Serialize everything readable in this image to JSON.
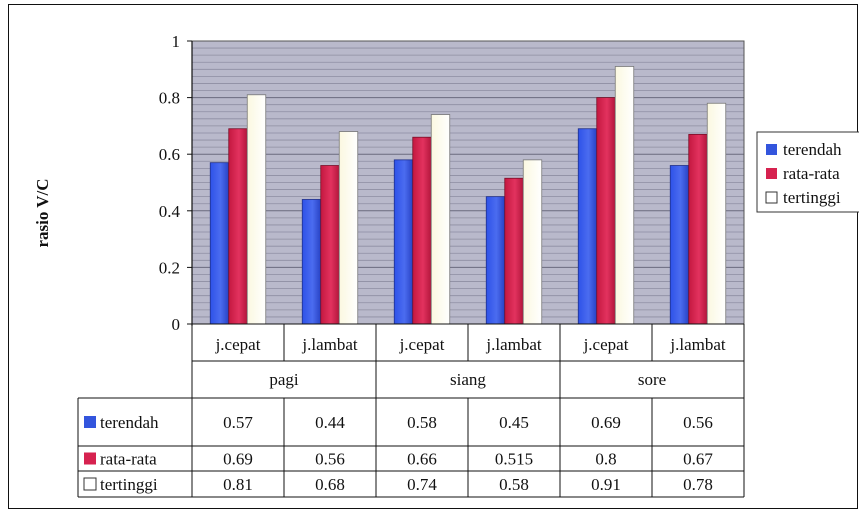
{
  "chart_data": {
    "type": "bar",
    "ylabel": "rasio V/C",
    "ylim": [
      0,
      1
    ],
    "y_ticks": [
      "0",
      "0.2",
      "0.4",
      "0.6",
      "0.8",
      "1"
    ],
    "categories": [
      "j.cepat",
      "j.lambat",
      "j.cepat",
      "j.lambat",
      "j.cepat",
      "j.lambat"
    ],
    "groups": [
      "pagi",
      "siang",
      "sore"
    ],
    "grid": true,
    "legend_position": "right",
    "series": [
      {
        "name": "terendah",
        "color": "#3355dd",
        "values": [
          0.57,
          0.44,
          0.58,
          0.45,
          0.69,
          0.56
        ],
        "labels": [
          "0.57",
          "0.44",
          "0.58",
          "0.45",
          "0.69",
          "0.56"
        ]
      },
      {
        "name": "rata-rata",
        "color": "#d6224f",
        "values": [
          0.69,
          0.56,
          0.66,
          0.515,
          0.8,
          0.67
        ],
        "labels": [
          "0.69",
          "0.56",
          "0.66",
          "0.515",
          "0.8",
          "0.67"
        ]
      },
      {
        "name": "tertinggi",
        "color": "#fffde8",
        "values": [
          0.81,
          0.68,
          0.74,
          0.58,
          0.91,
          0.78
        ],
        "labels": [
          "0.81",
          "0.68",
          "0.74",
          "0.58",
          "0.91",
          "0.78"
        ]
      }
    ]
  }
}
